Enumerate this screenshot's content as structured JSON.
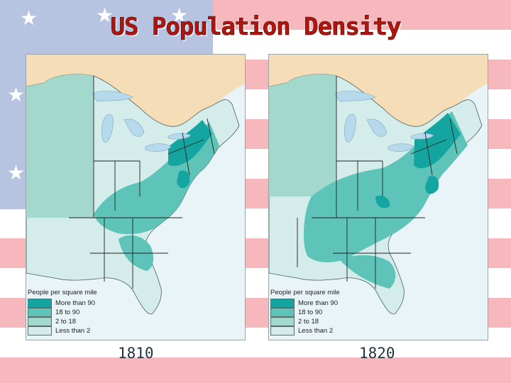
{
  "title": "US Population Density",
  "colors": {
    "title": "#b3150e",
    "stripe_red": "#f6b8bd",
    "canton": "#b6c4e1",
    "ocean": "#e9f4f8",
    "canada": "#f5ddb8",
    "lake": "#b6d9ec",
    "border": "#222222",
    "density": [
      "#14a5a0",
      "#5ec3b8",
      "#a3d9cd",
      "#d4ecea"
    ]
  },
  "legend": {
    "title": "People per square mile",
    "items": [
      {
        "label": "More than 90",
        "color": "#14a5a0"
      },
      {
        "label": "18 to 90",
        "color": "#5ec3b8"
      },
      {
        "label": "2 to 18",
        "color": "#a3d9cd"
      },
      {
        "label": "Less than 2",
        "color": "#d4ecea"
      }
    ]
  },
  "maps": [
    {
      "year": "1810"
    },
    {
      "year": "1820"
    }
  ]
}
